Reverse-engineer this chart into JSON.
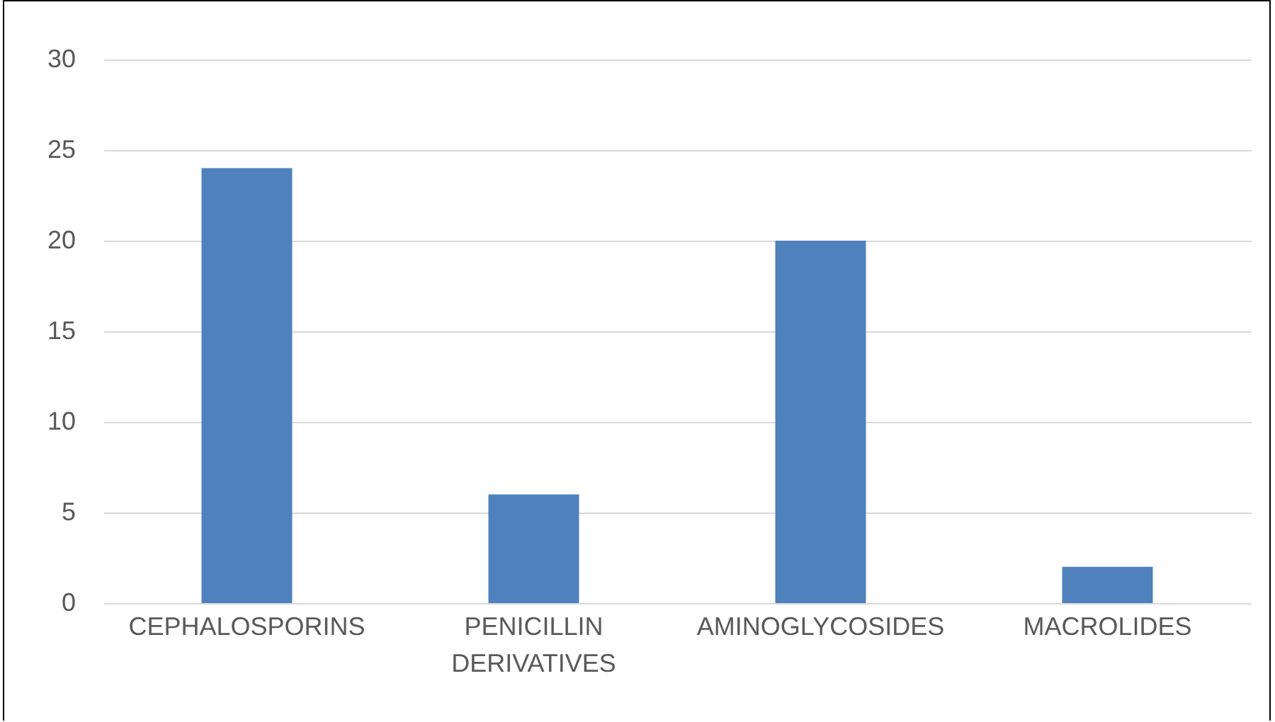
{
  "chart_data": {
    "type": "bar",
    "categories": [
      "CEPHALOSPORINS",
      "PENICILLIN DERIVATIVES",
      "AMINOGLYCOSIDES",
      "MACROLIDES"
    ],
    "values": [
      24,
      6,
      20,
      2
    ],
    "color": "#4f81bd",
    "ylim": [
      0,
      30
    ],
    "yticks": [
      0,
      5,
      10,
      15,
      20,
      25,
      30
    ],
    "grid": "y"
  }
}
